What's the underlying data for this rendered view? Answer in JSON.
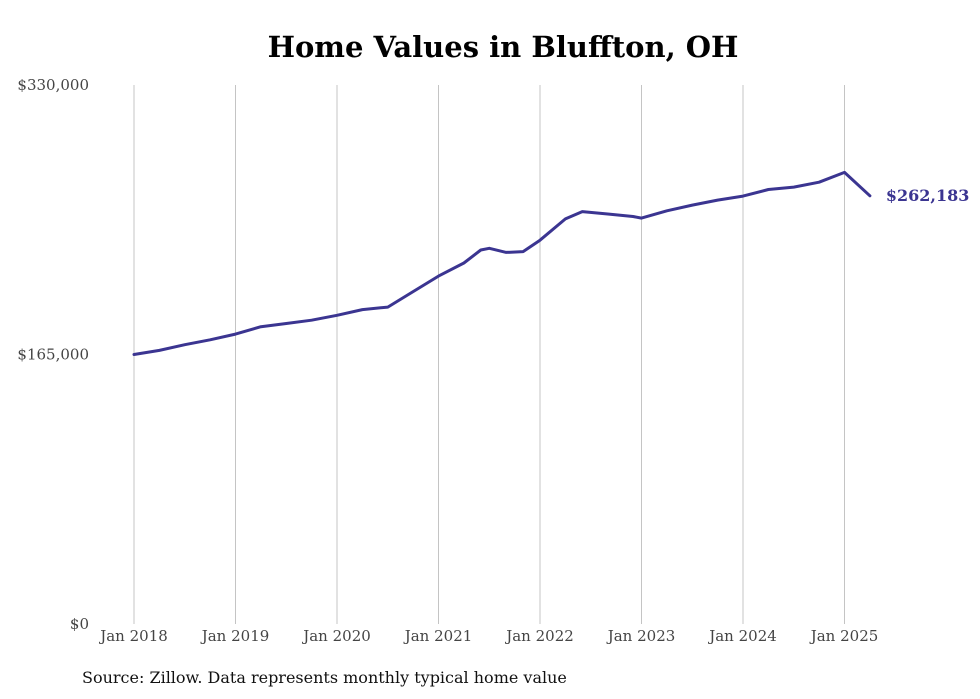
{
  "chart_data": {
    "type": "line",
    "title": "Home Values in Bluffton, OH",
    "source": "Source: Zillow. Data represents monthly typical home value",
    "ylim": [
      0,
      330000
    ],
    "y_ticks": [
      {
        "value": 0,
        "label": "$0"
      },
      {
        "value": 165000,
        "label": "$165,000"
      },
      {
        "value": 330000,
        "label": "$330,000"
      }
    ],
    "x_ticks": [
      {
        "year": 2018,
        "label": "Jan 2018"
      },
      {
        "year": 2019,
        "label": "Jan 2019"
      },
      {
        "year": 2020,
        "label": "Jan 2020"
      },
      {
        "year": 2021,
        "label": "Jan 2021"
      },
      {
        "year": 2022,
        "label": "Jan 2022"
      },
      {
        "year": 2023,
        "label": "Jan 2023"
      },
      {
        "year": 2024,
        "label": "Jan 2024"
      },
      {
        "year": 2025,
        "label": "Jan 2025"
      }
    ],
    "x_grid": true,
    "line_color": "#3b3591",
    "end_label": "$262,183",
    "series": [
      {
        "points": [
          [
            "2018-01",
            165000
          ],
          [
            "2018-04",
            167500
          ],
          [
            "2018-07",
            171000
          ],
          [
            "2018-10",
            174000
          ],
          [
            "2019-01",
            177500
          ],
          [
            "2019-04",
            182000
          ],
          [
            "2019-07",
            184000
          ],
          [
            "2019-10",
            186000
          ],
          [
            "2020-01",
            189000
          ],
          [
            "2020-04",
            192500
          ],
          [
            "2020-07",
            194000
          ],
          [
            "2020-10",
            203500
          ],
          [
            "2021-01",
            213000
          ],
          [
            "2021-04",
            221000
          ],
          [
            "2021-06",
            229000
          ],
          [
            "2021-07",
            230000
          ],
          [
            "2021-09",
            227500
          ],
          [
            "2021-11",
            228000
          ],
          [
            "2022-01",
            235000
          ],
          [
            "2022-04",
            248000
          ],
          [
            "2022-06",
            252500
          ],
          [
            "2022-09",
            251000
          ],
          [
            "2022-12",
            249500
          ],
          [
            "2023-01",
            248500
          ],
          [
            "2023-04",
            253000
          ],
          [
            "2023-07",
            256500
          ],
          [
            "2023-10",
            259500
          ],
          [
            "2024-01",
            262000
          ],
          [
            "2024-04",
            266000
          ],
          [
            "2024-07",
            267500
          ],
          [
            "2024-10",
            270500
          ],
          [
            "2025-01",
            276500
          ],
          [
            "2025-04",
            262183
          ]
        ]
      }
    ]
  }
}
